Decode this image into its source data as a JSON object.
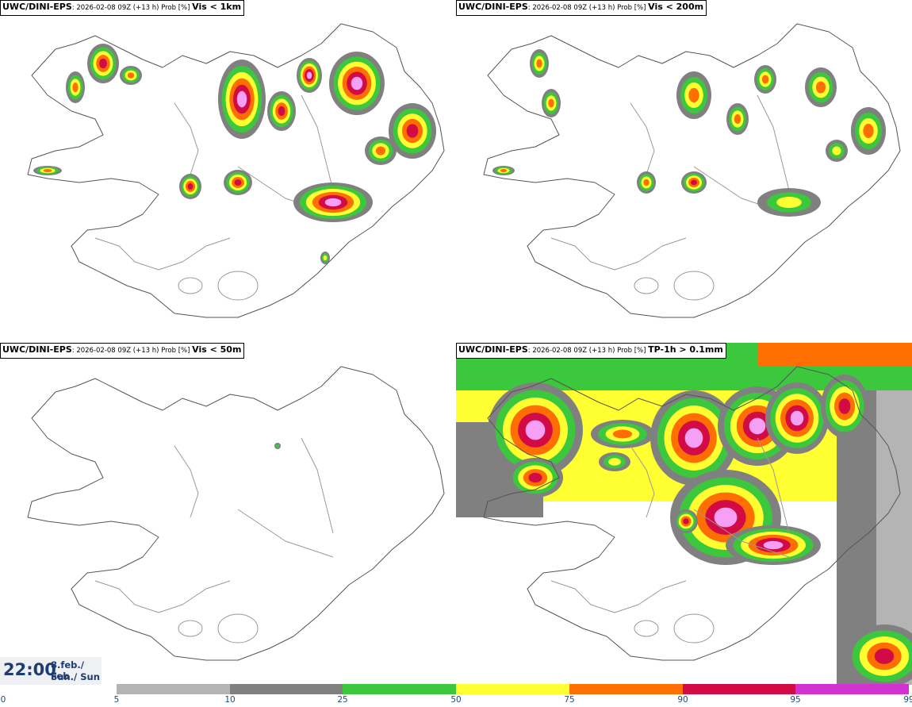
{
  "panels": {
    "tl": {
      "model": "UWC/DINI-EPS",
      "meta": ": 2026-02-08 09Z (+13 h) Prob [%] ",
      "threshold": "Vis < 1km"
    },
    "tr": {
      "model": "UWC/DINI-EPS",
      "meta": ": 2026-02-08 09Z (+13 h) Prob [%] ",
      "threshold": "Vis < 200m"
    },
    "bl": {
      "model": "UWC/DINI-EPS",
      "meta": ": 2026-02-08 09Z (+13 h) Prob [%] ",
      "threshold": "Vis < 50m"
    },
    "br": {
      "model": "UWC/DINI-EPS",
      "meta": ": 2026-02-08 09Z (+13 h) Prob [%] ",
      "threshold": "TP-1h > 0.1mm"
    }
  },
  "valid_time": {
    "time": "22:00",
    "date_line1": "8.feb./ Feb",
    "date_line2": "Sun./ Sun"
  },
  "legend": {
    "ticks": [
      "0",
      "5",
      "10",
      "25",
      "50",
      "75",
      "90",
      "95",
      "99"
    ],
    "bins": [
      {
        "from": 5,
        "to": 10,
        "color": "#b4b4b4"
      },
      {
        "from": 10,
        "to": 25,
        "color": "#808080"
      },
      {
        "from": 25,
        "to": 50,
        "color": "#3cc83c"
      },
      {
        "from": 50,
        "to": 75,
        "color": "#ffff32"
      },
      {
        "from": 75,
        "to": 90,
        "color": "#ff6e00"
      },
      {
        "from": 90,
        "to": 95,
        "color": "#d20a46"
      },
      {
        "from": 95,
        "to": 99,
        "color": "#d232d2"
      }
    ],
    "top_color": "#f5a0f5"
  }
}
